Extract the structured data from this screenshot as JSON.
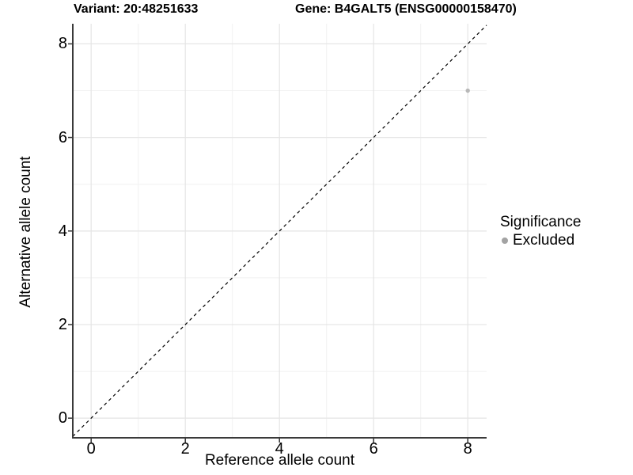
{
  "figure": {
    "title_variant": "Variant: 20:48251633",
    "title_gene": "Gene: B4GALT5 (ENSG00000158470)"
  },
  "chart_data": {
    "type": "scatter",
    "titles": [
      "Variant: 20:48251633",
      "Gene: B4GALT5 (ENSG00000158470)"
    ],
    "xlabel": "Reference allele count",
    "ylabel": "Alternative allele count",
    "xlim": [
      -0.39,
      8.4
    ],
    "ylim": [
      -0.42,
      8.43
    ],
    "x_ticks": [
      0,
      2,
      4,
      6,
      8
    ],
    "y_ticks": [
      0,
      2,
      4,
      6,
      8
    ],
    "x_minor_ticks": [
      1,
      3,
      5,
      7
    ],
    "y_minor_ticks": [
      1,
      3,
      5,
      7
    ],
    "grid": "major and minor gridlines, white background",
    "points": [
      {
        "x": 8,
        "y": 7,
        "significance": "Excluded"
      }
    ],
    "reference_line": {
      "kind": "identity y=x",
      "style": "dashed"
    },
    "legend": {
      "position": "right",
      "title": "Significance",
      "items": [
        {
          "label": "Excluded",
          "color": "#a3a3a3"
        }
      ]
    },
    "colors": {
      "point": "#b8b8b8",
      "legend_key": "#a3a3a3",
      "grid_major": "#e6e6e6",
      "grid_minor": "#f1f1f1",
      "axis_line": "#3a3a3a",
      "tick_mark": "#333333",
      "dashed_line": "#000000",
      "text": "#000000",
      "background": "#ffffff"
    }
  }
}
